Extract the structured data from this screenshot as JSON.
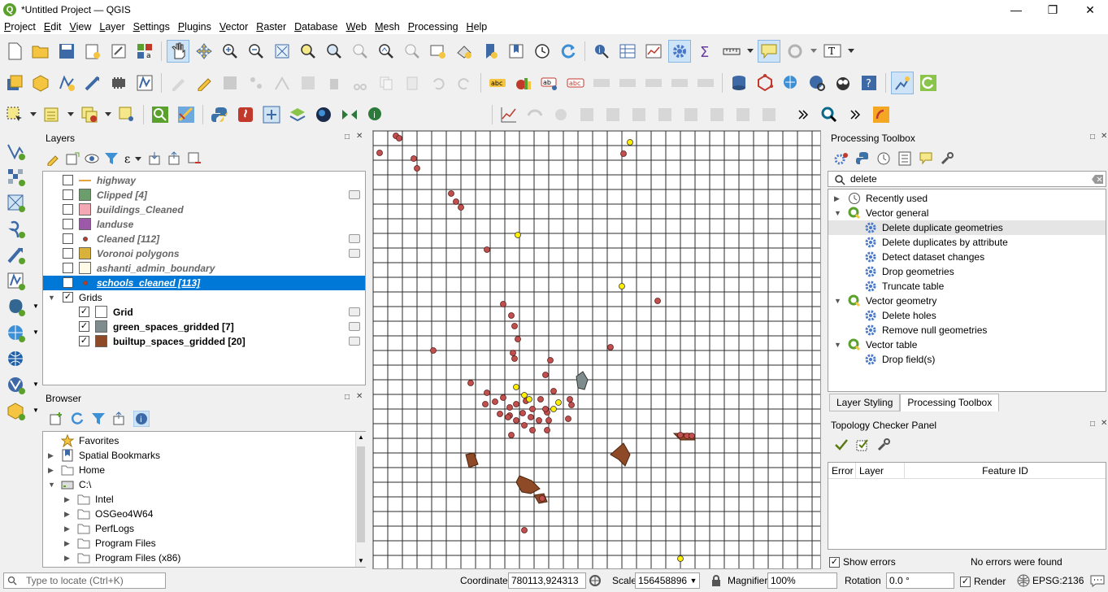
{
  "window": {
    "title": "*Untitled Project — QGIS"
  },
  "menubar": [
    "Project",
    "Edit",
    "View",
    "Layer",
    "Settings",
    "Plugins",
    "Vector",
    "Raster",
    "Database",
    "Web",
    "Mesh",
    "Processing",
    "Help"
  ],
  "layers_panel": {
    "title": "Layers",
    "items": [
      {
        "label": "highway",
        "style": "italic",
        "checked": false,
        "symbol": "line",
        "color": "#e8a33c"
      },
      {
        "label": "Clipped [4]",
        "style": "italic",
        "checked": false,
        "symbol": "fill",
        "color": "#6b9e6b"
      },
      {
        "label": "buildings_Cleaned",
        "style": "italic",
        "checked": false,
        "symbol": "fill",
        "color": "#f4a8b4"
      },
      {
        "label": "landuse",
        "style": "italic",
        "checked": false,
        "symbol": "fill",
        "color": "#9b59a8"
      },
      {
        "label": "Cleaned [112]",
        "style": "italic",
        "checked": false,
        "symbol": "point",
        "color": "#c0392b"
      },
      {
        "label": "Voronoi polygons",
        "style": "italic",
        "checked": false,
        "symbol": "fill",
        "color": "#d8b23a"
      },
      {
        "label": "ashanti_admin_boundary",
        "style": "italic",
        "checked": false,
        "symbol": "fill",
        "color": "#fffbe6"
      },
      {
        "label": "schools_cleaned [113]",
        "style": "selected",
        "checked": true,
        "symbol": "point",
        "color": "#c0392b"
      },
      {
        "label": "Grids",
        "style": "group",
        "checked": true
      },
      {
        "label": "Grid",
        "style": "bold",
        "checked": true,
        "symbol": "fill",
        "color": "#ffffff"
      },
      {
        "label": "green_spaces_gridded [7]",
        "style": "bold",
        "checked": true,
        "symbol": "fill",
        "color": "#7f8c8d"
      },
      {
        "label": "builtup_spaces_gridded [20]",
        "style": "bold",
        "checked": true,
        "symbol": "fill",
        "color": "#8e4a26"
      }
    ]
  },
  "browser_panel": {
    "title": "Browser",
    "items": [
      {
        "label": "Favorites",
        "icon": "star-icon",
        "indent": 0,
        "expander": ""
      },
      {
        "label": "Spatial Bookmarks",
        "icon": "bookmark-icon",
        "indent": 0,
        "expander": "▶"
      },
      {
        "label": "Home",
        "icon": "folder-icon",
        "indent": 0,
        "expander": "▶"
      },
      {
        "label": "C:\\",
        "icon": "drive-icon",
        "indent": 0,
        "expander": "▼"
      },
      {
        "label": "Intel",
        "icon": "folder-icon",
        "indent": 1,
        "expander": "▶"
      },
      {
        "label": "OSGeo4W64",
        "icon": "folder-icon",
        "indent": 1,
        "expander": "▶"
      },
      {
        "label": "PerfLogs",
        "icon": "folder-icon",
        "indent": 1,
        "expander": "▶"
      },
      {
        "label": "Program Files",
        "icon": "folder-icon",
        "indent": 1,
        "expander": "▶"
      },
      {
        "label": "Program Files (x86)",
        "icon": "folder-icon",
        "indent": 1,
        "expander": "▶"
      }
    ]
  },
  "processing_toolbox": {
    "title": "Processing Toolbox",
    "search_value": "delete",
    "items": [
      {
        "label": "Recently used",
        "kind": "group-clock",
        "indent": 0,
        "expander": "▶"
      },
      {
        "label": "Vector general",
        "kind": "group-q",
        "indent": 0,
        "expander": "▼"
      },
      {
        "label": "Delete duplicate geometries",
        "kind": "algo",
        "indent": 1,
        "expander": "",
        "highlight": true
      },
      {
        "label": "Delete duplicates by attribute",
        "kind": "algo",
        "indent": 1,
        "expander": ""
      },
      {
        "label": "Detect dataset changes",
        "kind": "algo",
        "indent": 1,
        "expander": ""
      },
      {
        "label": "Drop geometries",
        "kind": "algo",
        "indent": 1,
        "expander": ""
      },
      {
        "label": "Truncate table",
        "kind": "algo",
        "indent": 1,
        "expander": ""
      },
      {
        "label": "Vector geometry",
        "kind": "group-q",
        "indent": 0,
        "expander": "▼"
      },
      {
        "label": "Delete holes",
        "kind": "algo",
        "indent": 1,
        "expander": ""
      },
      {
        "label": "Remove null geometries",
        "kind": "algo",
        "indent": 1,
        "expander": ""
      },
      {
        "label": "Vector table",
        "kind": "group-q",
        "indent": 0,
        "expander": "▼"
      },
      {
        "label": "Drop field(s)",
        "kind": "algo",
        "indent": 1,
        "expander": ""
      }
    ],
    "tabs": [
      "Layer Styling",
      "Processing Toolbox"
    ]
  },
  "topology_panel": {
    "title": "Topology Checker Panel",
    "columns": [
      "Error",
      "Layer",
      "Feature ID"
    ],
    "show_errors_label": "Show errors",
    "status": "No errors were found"
  },
  "statusbar": {
    "locator_placeholder": "Type to locate (Ctrl+K)",
    "coordinate_label": "Coordinate",
    "coordinate_value": "780113,924313",
    "scale_label": "Scale",
    "scale_value": "156458896",
    "magnifier_label": "Magnifier",
    "magnifier_value": "100%",
    "rotation_label": "Rotation",
    "rotation_value": "0.0 °",
    "render_label": "Render",
    "crs_label": "EPSG:2136"
  },
  "map_style": {
    "grid_color": "#2b2b2b",
    "school_color": "#c0504d",
    "yellow_color": "#ffee00",
    "builtup_color": "#8e4a26",
    "green_space_color": "#7f8c8d"
  }
}
